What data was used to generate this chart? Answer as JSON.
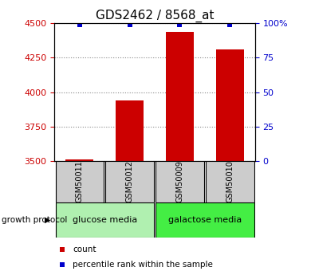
{
  "title": "GDS2462 / 8568_at",
  "samples": [
    "GSM50011",
    "GSM50012",
    "GSM50009",
    "GSM50010"
  ],
  "bar_values": [
    3510,
    3940,
    4440,
    4310
  ],
  "percentile_values": [
    99,
    99,
    99,
    99
  ],
  "ylim_left": [
    3500,
    4500
  ],
  "ylim_right": [
    0,
    100
  ],
  "yticks_left": [
    3500,
    3750,
    4000,
    4250,
    4500
  ],
  "yticks_right": [
    0,
    25,
    50,
    75,
    100
  ],
  "bar_color": "#cc0000",
  "dot_color": "#0000cc",
  "bar_bottom": 3500,
  "groups": [
    {
      "label": "glucose media",
      "samples": [
        0,
        1
      ],
      "color": "#b0f0b0"
    },
    {
      "label": "galactose media",
      "samples": [
        2,
        3
      ],
      "color": "#44ee44"
    }
  ],
  "growth_protocol_label": "growth protocol",
  "legend_count_label": "count",
  "legend_pct_label": "percentile rank within the sample",
  "title_fontsize": 11,
  "tick_fontsize": 8,
  "grid_color": "#888888",
  "left_tick_color": "#cc0000",
  "right_tick_color": "#0000cc",
  "sample_box_color": "#cccccc",
  "bar_width": 0.55
}
